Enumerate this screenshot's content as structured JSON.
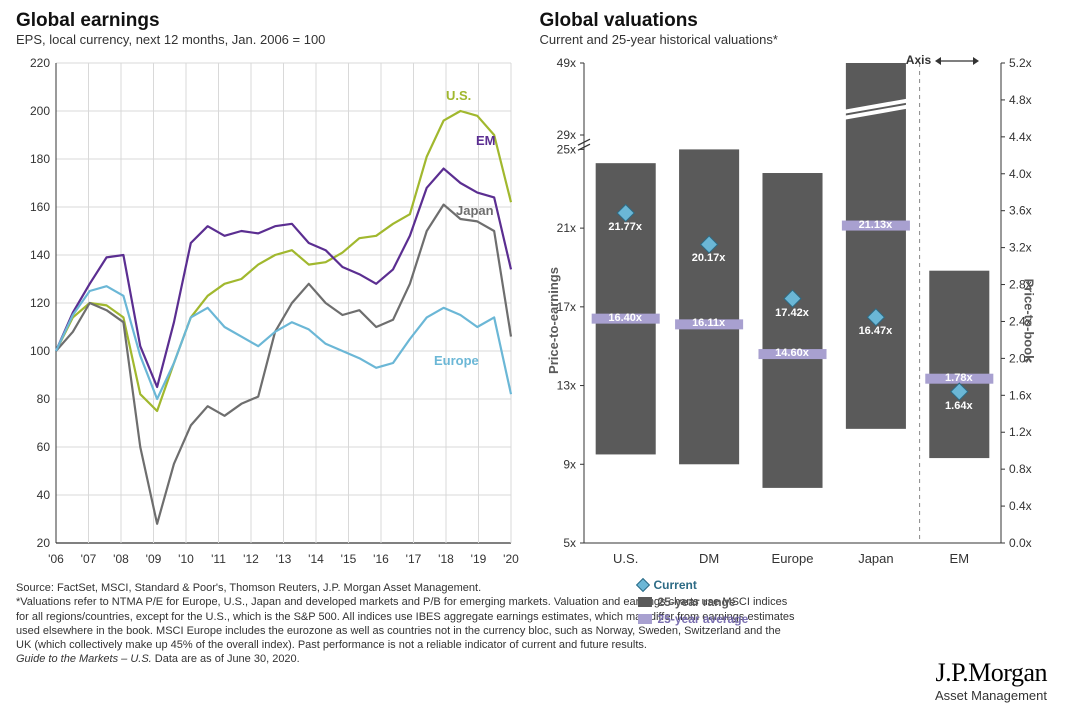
{
  "panel_left": {
    "title": "Global earnings",
    "subtitle": "EPS, local currency, next 12 months, Jan. 2006 = 100",
    "ylim": [
      20,
      220
    ],
    "ytick_step": 20,
    "x_labels": [
      "'06",
      "'07",
      "'08",
      "'09",
      "'10",
      "'11",
      "'12",
      "'13",
      "'14",
      "'15",
      "'16",
      "'17",
      "'18",
      "'19",
      "'20"
    ],
    "grid_color": "#d9d9d9",
    "axis_color": "#343434",
    "series": [
      {
        "name": "U.S.",
        "color": "#a1b82e",
        "label_pos": {
          "top": 35,
          "left": 430
        },
        "data": [
          100,
          114,
          120,
          119,
          114,
          82,
          75,
          95,
          114,
          123,
          128,
          130,
          136,
          140,
          142,
          136,
          137,
          141,
          147,
          148,
          153,
          157,
          181,
          196,
          200,
          198,
          190,
          162
        ]
      },
      {
        "name": "EM",
        "color": "#5b2e91",
        "label_pos": {
          "top": 80,
          "left": 460
        },
        "data": [
          100,
          116,
          128,
          139,
          140,
          102,
          85,
          112,
          145,
          152,
          148,
          150,
          149,
          152,
          153,
          145,
          142,
          135,
          132,
          128,
          134,
          148,
          168,
          176,
          170,
          166,
          164,
          134
        ]
      },
      {
        "name": "Japan",
        "color": "#6e6e6e",
        "label_pos": {
          "top": 150,
          "left": 440
        },
        "data": [
          100,
          108,
          120,
          117,
          112,
          60,
          28,
          53,
          69,
          77,
          73,
          78,
          81,
          108,
          120,
          128,
          120,
          115,
          117,
          110,
          113,
          128,
          150,
          161,
          155,
          154,
          150,
          106
        ]
      },
      {
        "name": "Europe",
        "color": "#6bb7d6",
        "label_pos": {
          "top": 300,
          "left": 418
        },
        "data": [
          100,
          115,
          125,
          127,
          123,
          98,
          80,
          95,
          114,
          118,
          110,
          106,
          102,
          108,
          112,
          109,
          103,
          100,
          97,
          93,
          95,
          105,
          114,
          118,
          115,
          110,
          114,
          82
        ]
      }
    ]
  },
  "panel_right": {
    "title": "Global valuations",
    "subtitle": "Current and 25-year historical valuations*",
    "axis_note": "Axis",
    "ylabel_left": "Price-to-earnings",
    "ylabel_right": "Price-to-book",
    "legend": {
      "current": {
        "label": "Current",
        "color": "#6bb7d6"
      },
      "range": {
        "label": "25-year range",
        "color": "#5a5a5a"
      },
      "avg": {
        "label": "25-year average",
        "color": "#a8a0d0"
      }
    },
    "left_scale": {
      "ticks_bottom": [
        5,
        9,
        13,
        17,
        21,
        25
      ],
      "ticks_top": [
        29,
        49
      ]
    },
    "right_scale": {
      "ticks": [
        0.0,
        0.4,
        0.8,
        1.2,
        1.6,
        2.0,
        2.4,
        2.8,
        3.2,
        3.6,
        4.0,
        4.4,
        4.8,
        5.2
      ]
    },
    "bars": [
      {
        "label": "U.S.",
        "low": 9.5,
        "high": 24.3,
        "avg": 16.4,
        "current": 21.77,
        "axis": "left"
      },
      {
        "label": "DM",
        "low": 9.0,
        "high": 25.0,
        "avg": 16.11,
        "current": 20.17,
        "axis": "left"
      },
      {
        "label": "Europe",
        "low": 7.8,
        "high": 23.8,
        "avg": 14.6,
        "current": 17.42,
        "axis": "left"
      },
      {
        "label": "Japan",
        "low": 10.8,
        "high": 49,
        "avg": 21.13,
        "current": 16.47,
        "axis": "left"
      },
      {
        "label": "EM",
        "low": 0.92,
        "high": 2.95,
        "avg": 1.78,
        "current": 1.64,
        "axis": "right"
      }
    ],
    "bar_color": "#5a5a5a",
    "avg_color": "#a8a0d0",
    "current_fill": "#6bb7d6",
    "current_stroke": "#2d6b85"
  },
  "footer": {
    "line1": "Source: FactSet, MSCI, Standard & Poor's, Thomson Reuters, J.P. Morgan Asset Management.",
    "line2": "*Valuations refer to NTMA P/E for Europe, U.S., Japan and developed markets and P/B for emerging markets. Valuation and earnings charts use MSCI indices for all regions/countries, except for the U.S., which is the S&P 500. All indices use IBES aggregate earnings estimates, which may differ from earnings estimates used elsewhere in the book. MSCI Europe includes the eurozone as well as countries not in the currency bloc, such as Norway, Sweden, Switzerland and the UK (which collectively make up 45% of the overall index). Past performance is not a reliable indicator of current and future results.",
    "line3_prefix": "Guide to the Markets – U.S.",
    "line3_suffix": " Data are as of June 30, 2020."
  },
  "brand": {
    "top": "J.P.Morgan",
    "bottom": "Asset Management"
  }
}
